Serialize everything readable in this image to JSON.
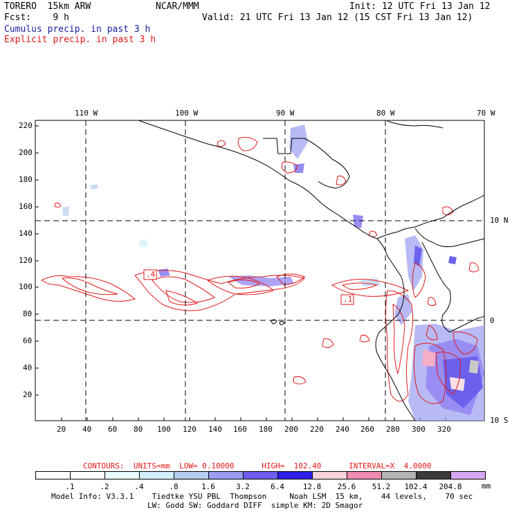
{
  "header": {
    "model": "TORERO  15km ARW",
    "org": "NCAR/MMM",
    "init": "Init: 12 UTC Fri 13 Jan 12",
    "fcst": "Fcst:    9 h",
    "valid": "Valid: 21 UTC Fri 13 Jan 12 (15 CST Fri 13 Jan 12)",
    "field1": "Cumulus precip. in past 3 h",
    "field2": "Explicit precip. in past 3 h"
  },
  "colors": {
    "cumulus_text": "#1a1aa0",
    "explicit_text": "#e01818",
    "contour": "#e01818",
    "coast": "#000000",
    "grid": "#000000"
  },
  "map": {
    "lon_labels": [
      "110 W",
      "100 W",
      "90 W",
      "80 W",
      "70 W"
    ],
    "lat_labels": [
      "10 N",
      "0",
      "10 S"
    ],
    "y_ticks": [
      "220",
      "200",
      "180",
      "160",
      "140",
      "120",
      "100",
      "80",
      "60",
      "40",
      "20"
    ],
    "x_ticks": [
      "20",
      "40",
      "60",
      "80",
      "100",
      "120",
      "140",
      "160",
      "180",
      "200",
      "220",
      "240",
      "260",
      "280",
      "300",
      "320"
    ],
    "contour_labels": [
      ".4",
      ".1"
    ]
  },
  "legend": {
    "contours_line": "CONTOURS:  UNITS=mm  LOW= 0.10000      HIGH=  102.40      INTERVAL=X  4.0000",
    "unit": "mm",
    "thresholds": [
      ".1",
      ".2",
      ".4",
      ".8",
      "1.6",
      "3.2",
      "6.4",
      "12.8",
      "25.6",
      "51.2",
      "102.4",
      "204.8"
    ],
    "fill_colors": [
      "#ffffff",
      "#ffffff",
      "#e8fbff",
      "#d2eefb",
      "#b5ceee",
      "#9a9df2",
      "#6f5ef0",
      "#2e1fe6",
      "#fad2dc",
      "#f08cb2",
      "#b4b4b4",
      "#3c3c3c",
      "#d6a8f5"
    ]
  },
  "footer": {
    "line1": "Model Info: V3.3.1    Tiedtke YSU PBL  Thompson     Noah LSM  15 km,    44 levels,    70 sec",
    "line2": "LW: Godd SW: Goddard DIFF  simple KM: 2D Smagor"
  }
}
